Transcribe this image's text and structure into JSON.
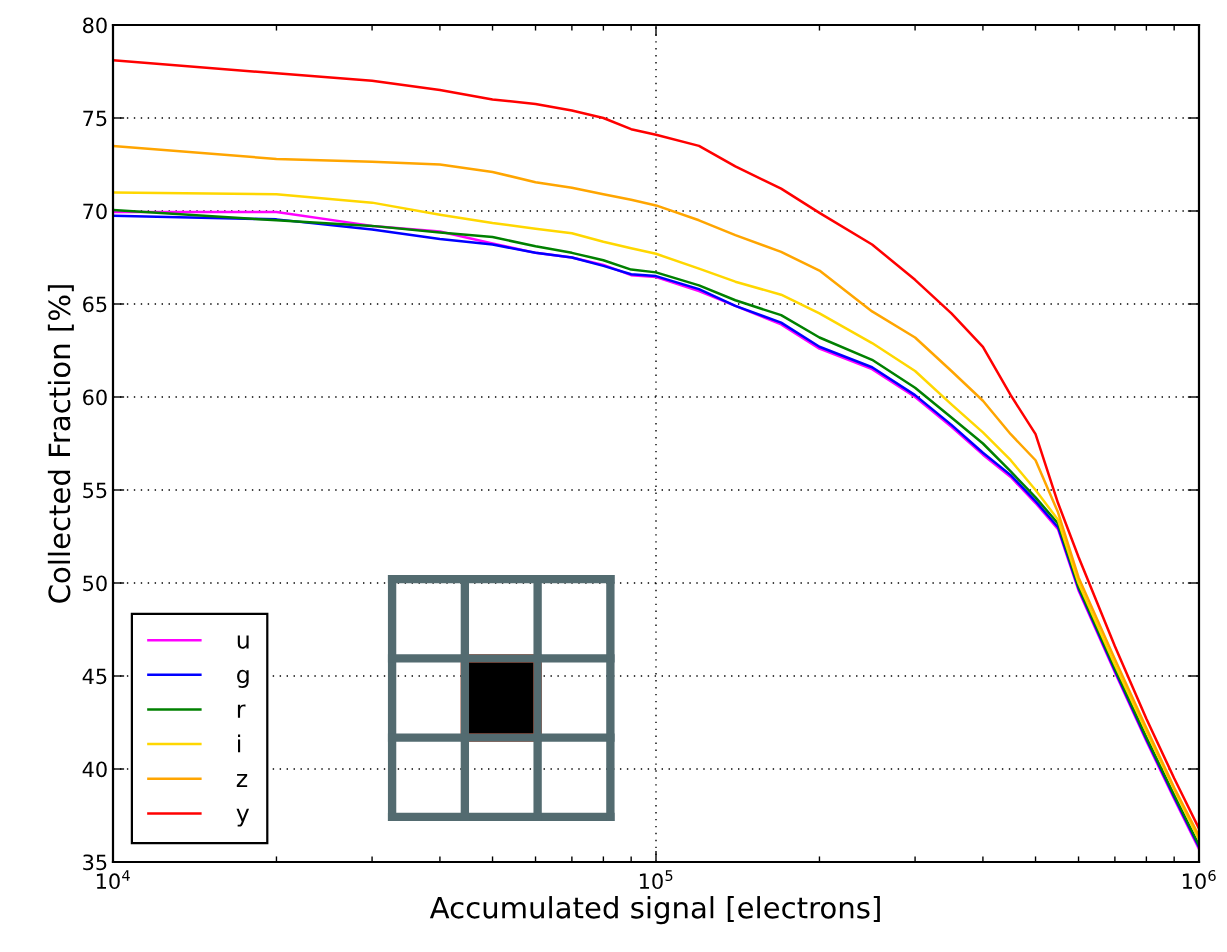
{
  "chart_data": {
    "type": "line",
    "xlabel": "Accumulated signal [electrons]",
    "ylabel": "Collected Fraction [%]",
    "x": [
      10000,
      20000,
      30000,
      40000,
      50000,
      60000,
      70000,
      80000,
      90000,
      100000,
      120000,
      140000,
      170000,
      200000,
      250000,
      300000,
      350000,
      400000,
      450000,
      500000,
      550000,
      600000,
      700000,
      800000,
      900000,
      1000000
    ],
    "series": [
      {
        "name": "u",
        "color": "#ff00ff",
        "values": [
          69.95,
          69.95,
          69.2,
          68.9,
          68.25,
          67.75,
          67.5,
          67.1,
          66.55,
          66.45,
          65.7,
          64.9,
          63.9,
          62.6,
          61.5,
          60.0,
          58.4,
          56.9,
          55.7,
          54.3,
          52.9,
          49.6,
          45.2,
          41.5,
          38.4,
          35.7
        ]
      },
      {
        "name": "g",
        "color": "#0000ff",
        "values": [
          69.75,
          69.55,
          69.0,
          68.5,
          68.2,
          67.75,
          67.5,
          67.05,
          66.6,
          66.5,
          65.8,
          64.9,
          64.0,
          62.7,
          61.6,
          60.1,
          58.5,
          57.0,
          55.8,
          54.4,
          53.0,
          49.7,
          45.3,
          41.6,
          38.5,
          35.8
        ]
      },
      {
        "name": "r",
        "color": "#008000",
        "values": [
          70.05,
          69.5,
          69.2,
          68.85,
          68.6,
          68.1,
          67.75,
          67.35,
          66.85,
          66.7,
          66.0,
          65.2,
          64.4,
          63.2,
          62.0,
          60.5,
          58.9,
          57.5,
          56.0,
          54.6,
          53.2,
          49.8,
          45.4,
          41.7,
          38.6,
          35.9
        ]
      },
      {
        "name": "i",
        "color": "#ffd700",
        "values": [
          71.0,
          70.9,
          70.45,
          69.8,
          69.35,
          69.05,
          68.8,
          68.35,
          68.0,
          67.7,
          66.9,
          66.2,
          65.5,
          64.5,
          62.9,
          61.4,
          59.6,
          58.1,
          56.6,
          55.0,
          53.4,
          50.0,
          45.6,
          42.0,
          38.9,
          36.2
        ]
      },
      {
        "name": "z",
        "color": "#ffa500",
        "values": [
          73.5,
          72.8,
          72.65,
          72.5,
          72.1,
          71.55,
          71.25,
          70.9,
          70.6,
          70.3,
          69.5,
          68.7,
          67.8,
          66.8,
          64.6,
          63.2,
          61.4,
          59.8,
          58.0,
          56.6,
          53.8,
          50.3,
          45.9,
          42.2,
          39.0,
          36.4
        ]
      },
      {
        "name": "y",
        "color": "#ff0000",
        "values": [
          78.1,
          77.4,
          77.0,
          76.5,
          76.0,
          75.75,
          75.4,
          75.0,
          74.4,
          74.1,
          73.5,
          72.4,
          71.2,
          69.9,
          68.2,
          66.3,
          64.5,
          62.7,
          60.1,
          58.0,
          54.3,
          51.4,
          46.6,
          42.7,
          39.5,
          36.8
        ]
      }
    ],
    "log": "x",
    "xlim": [
      10000,
      1000000
    ],
    "xticks": [
      {
        "value": 10000,
        "label": "10$^{4}$"
      },
      {
        "value": 100000,
        "label": "10$^{5}$"
      },
      {
        "value": 1000000,
        "label": "10$^{6}$"
      }
    ],
    "ylim": [
      35,
      80
    ],
    "yticks": [
      35,
      40,
      45,
      50,
      55,
      60,
      65,
      70,
      75,
      80
    ],
    "grid": true,
    "legend": "bottom left",
    "line_style": "solid",
    "marker": "none"
  }
}
